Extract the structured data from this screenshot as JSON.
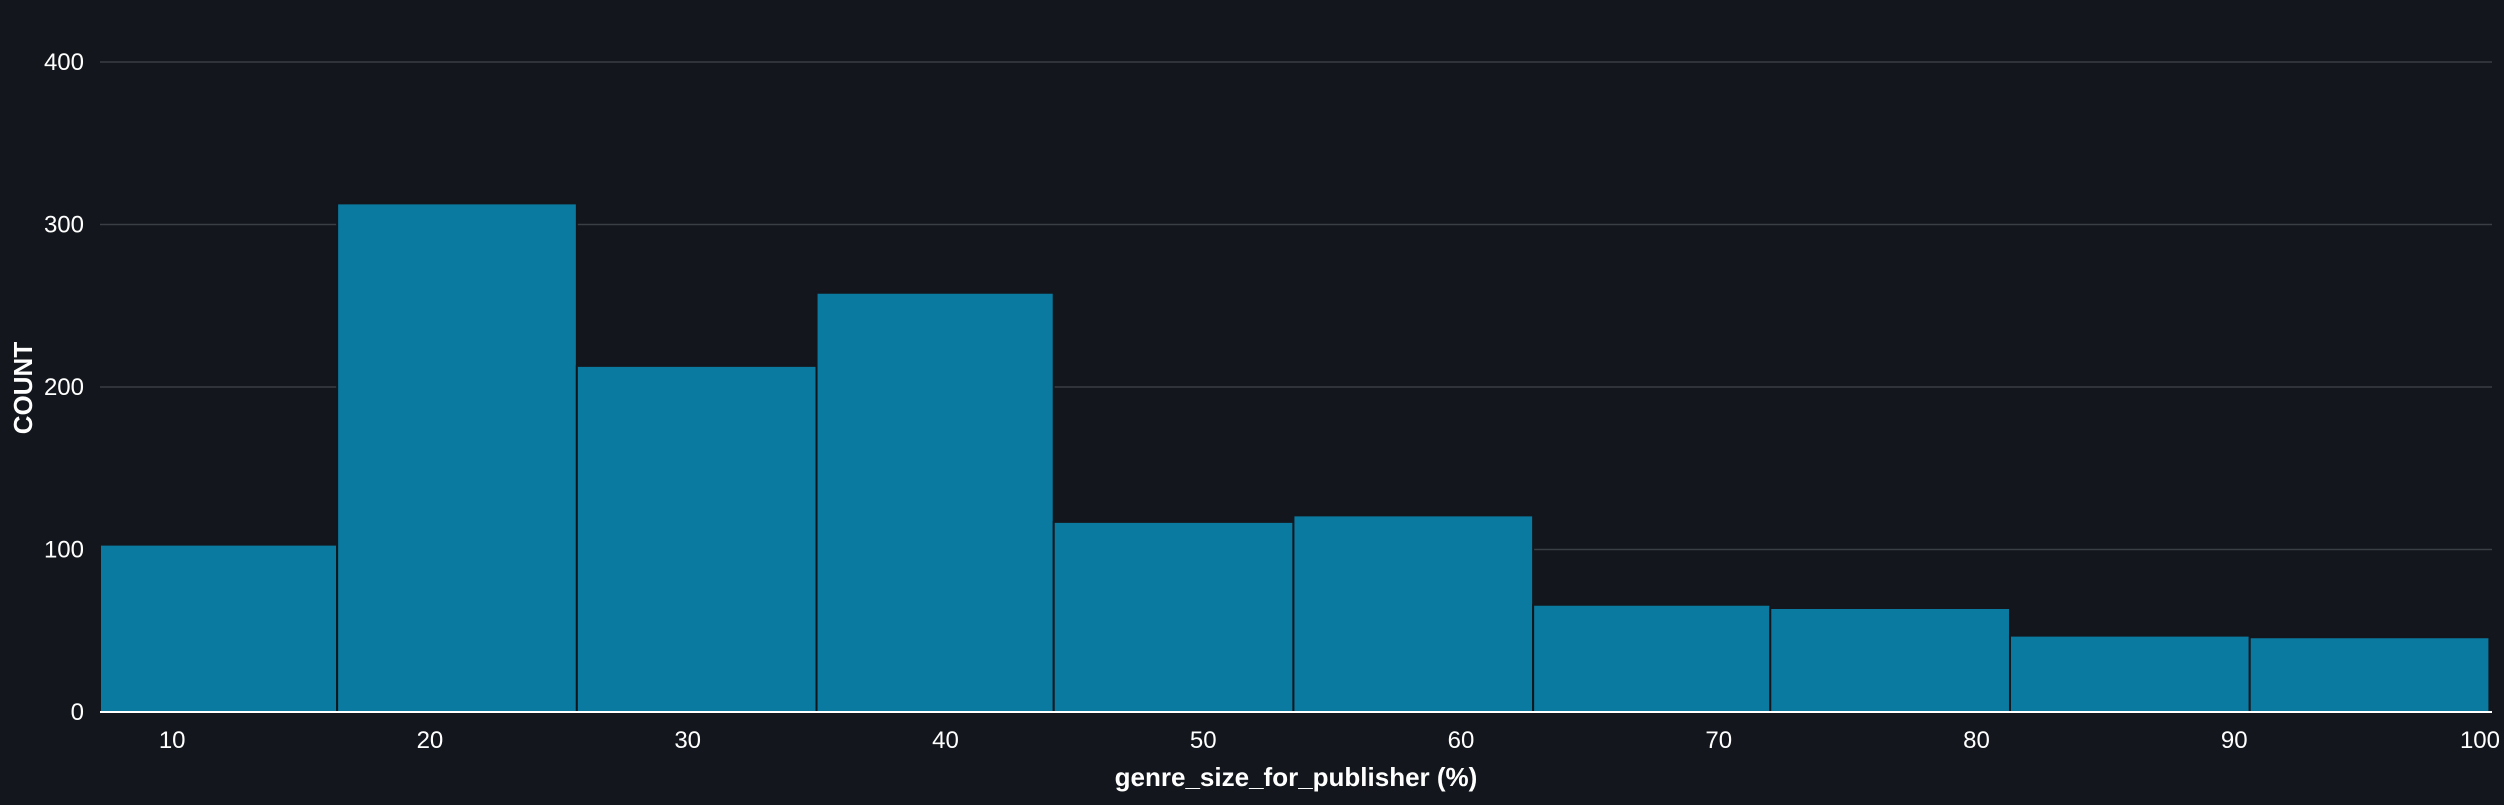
{
  "chart_data": {
    "type": "bar",
    "title": "",
    "xlabel": "genre_size_for_publisher (%)",
    "ylabel": "COUNT",
    "bins": [
      {
        "x0": 7.2,
        "x1": 16.4,
        "count": 103
      },
      {
        "x0": 16.4,
        "x1": 25.7,
        "count": 313
      },
      {
        "x0": 25.7,
        "x1": 35.0,
        "count": 213
      },
      {
        "x0": 35.0,
        "x1": 44.2,
        "count": 258
      },
      {
        "x0": 44.2,
        "x1": 53.5,
        "count": 117
      },
      {
        "x0": 53.5,
        "x1": 62.8,
        "count": 121
      },
      {
        "x0": 62.8,
        "x1": 72.0,
        "count": 66
      },
      {
        "x0": 72.0,
        "x1": 81.3,
        "count": 64
      },
      {
        "x0": 81.3,
        "x1": 90.6,
        "count": 47
      },
      {
        "x0": 90.6,
        "x1": 99.9,
        "count": 46
      }
    ],
    "x_ticks": [
      10,
      20,
      30,
      40,
      50,
      60,
      70,
      80,
      90,
      100
    ],
    "y_ticks": [
      0,
      100,
      200,
      300,
      400
    ],
    "xlim": [
      7.2,
      100
    ],
    "ylim": [
      0,
      400
    ],
    "grid": true,
    "bar_color": "#0a7aa1",
    "background": "#13171d",
    "grid_color": "#3a3f45"
  }
}
